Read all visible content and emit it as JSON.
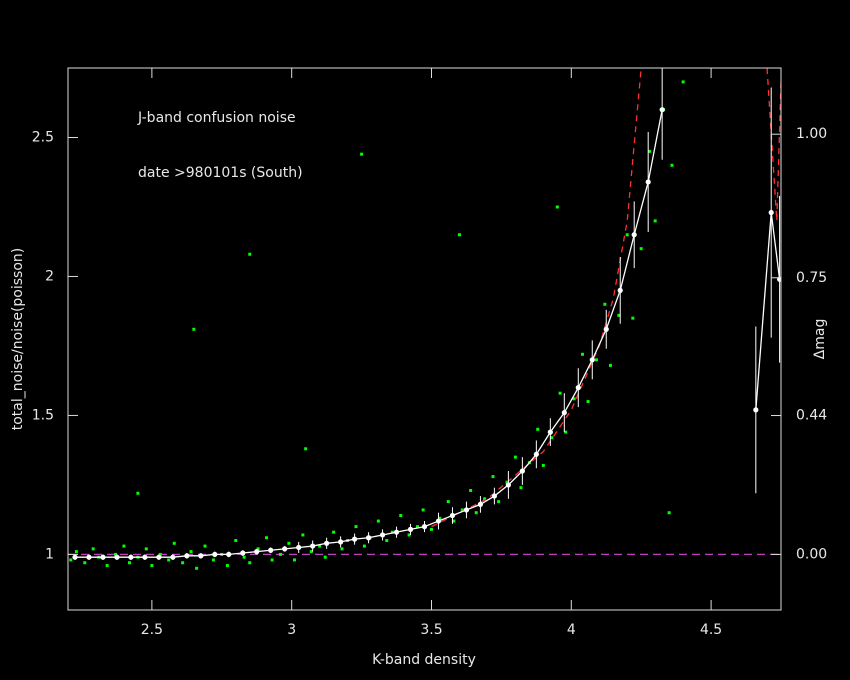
{
  "chart_data": {
    "type": "scatter",
    "annotations": [
      "J-band confusion noise",
      "date >980101s (South)"
    ],
    "xlabel": "K-band density",
    "ylabel": "total_noise/noise(poisson)",
    "y2label": "Δmag",
    "xlim": [
      2.2,
      4.75
    ],
    "ylim": [
      0.8,
      2.75
    ],
    "xticks": [
      2.5,
      3,
      3.5,
      4,
      4.5
    ],
    "yticks": [
      1,
      1.5,
      2,
      2.5
    ],
    "y2scale": "magnitude",
    "y2ticks": [
      {
        "value": 0,
        "label": "0.00"
      },
      0.44,
      0.75,
      {
        "value": 1,
        "label": "1.00"
      }
    ],
    "hline": {
      "value": 1,
      "color": "#c040c0"
    },
    "points": {
      "color": "#00ff00",
      "x": [
        2.21,
        2.23,
        2.26,
        2.29,
        2.31,
        2.34,
        2.37,
        2.4,
        2.42,
        2.45,
        2.48,
        2.5,
        2.53,
        2.56,
        2.58,
        2.61,
        2.64,
        2.66,
        2.69,
        2.72,
        2.75,
        2.77,
        2.8,
        2.83,
        2.85,
        2.88,
        2.91,
        2.93,
        2.96,
        2.99,
        3.01,
        3.04,
        3.07,
        3.1,
        3.12,
        3.15,
        3.18,
        3.2,
        3.23,
        3.26,
        3.28,
        3.31,
        3.34,
        3.36,
        3.39,
        3.42,
        3.45,
        3.47,
        3.5,
        3.53,
        3.56,
        3.58,
        3.61,
        3.64,
        3.66,
        3.69,
        3.72,
        3.74,
        3.77,
        3.8,
        3.82,
        3.85,
        3.88,
        3.9,
        3.93,
        3.96,
        3.98,
        4.01,
        4.04,
        4.06,
        4.09,
        4.12,
        4.14,
        4.17,
        4.2,
        4.22,
        4.25,
        4.28,
        4.3,
        4.33,
        4.36,
        4.4,
        2.45,
        2.85,
        3.05,
        3.25,
        2.65,
        3.6,
        3.95,
        4.35
      ],
      "y": [
        0.98,
        1.01,
        0.97,
        1.02,
        0.99,
        0.96,
        1.0,
        1.03,
        0.97,
        0.99,
        1.02,
        0.96,
        1.0,
        0.98,
        1.04,
        0.97,
        1.01,
        0.95,
        1.03,
        0.98,
        1.0,
        0.96,
        1.05,
        0.99,
        0.97,
        1.02,
        1.06,
        0.98,
        1.0,
        1.04,
        0.98,
        1.07,
        1.01,
        1.03,
        0.99,
        1.08,
        1.02,
        1.05,
        1.1,
        1.03,
        1.06,
        1.12,
        1.05,
        1.08,
        1.14,
        1.07,
        1.1,
        1.16,
        1.09,
        1.13,
        1.19,
        1.12,
        1.16,
        1.23,
        1.15,
        1.2,
        1.28,
        1.19,
        1.26,
        1.35,
        1.24,
        1.33,
        1.45,
        1.32,
        1.42,
        1.58,
        1.44,
        1.56,
        1.72,
        1.55,
        1.7,
        1.9,
        1.68,
        1.86,
        2.15,
        1.85,
        2.1,
        2.45,
        2.2,
        2.6,
        2.4,
        2.7,
        1.22,
        2.08,
        1.38,
        2.44,
        1.81,
        2.15,
        2.25,
        1.15
      ]
    },
    "mean": {
      "color": "#ffffff",
      "x": [
        2.225,
        2.275,
        2.325,
        2.375,
        2.425,
        2.475,
        2.525,
        2.575,
        2.625,
        2.675,
        2.725,
        2.775,
        2.825,
        2.875,
        2.925,
        2.975,
        3.025,
        3.075,
        3.125,
        3.175,
        3.225,
        3.275,
        3.325,
        3.375,
        3.425,
        3.475,
        3.525,
        3.575,
        3.625,
        3.675,
        3.725,
        3.775,
        3.825,
        3.875,
        3.925,
        3.975,
        4.025,
        4.075,
        4.125,
        4.175,
        4.225,
        4.275,
        4.325,
        4.5,
        4.66,
        4.715,
        4.745
      ],
      "values": [
        0.99,
        0.99,
        0.99,
        0.99,
        0.99,
        0.99,
        0.99,
        0.99,
        0.995,
        0.995,
        1.0,
        1.0,
        1.005,
        1.01,
        1.015,
        1.02,
        1.025,
        1.03,
        1.04,
        1.045,
        1.055,
        1.06,
        1.07,
        1.08,
        1.09,
        1.1,
        1.12,
        1.14,
        1.16,
        1.18,
        1.21,
        1.25,
        1.3,
        1.36,
        1.44,
        1.51,
        1.6,
        1.7,
        1.81,
        1.95,
        2.15,
        2.34,
        2.6,
        null,
        1.52,
        2.23,
        1.99
      ],
      "errors": [
        0.01,
        0.01,
        0.01,
        0.01,
        0.01,
        0.01,
        0.01,
        0.01,
        0.01,
        0.01,
        0.01,
        0.01,
        0.01,
        0.01,
        0.01,
        0.01,
        0.02,
        0.02,
        0.02,
        0.02,
        0.02,
        0.02,
        0.02,
        0.02,
        0.02,
        0.02,
        0.03,
        0.03,
        0.03,
        0.03,
        0.03,
        0.05,
        0.05,
        0.05,
        0.05,
        0.07,
        0.07,
        0.07,
        0.07,
        0.12,
        0.12,
        0.18,
        0.18,
        null,
        0.3,
        0.45,
        0.3
      ]
    },
    "model": {
      "color": "#ff3030",
      "x": [
        3.5,
        3.7,
        3.9,
        4.0,
        4.1,
        4.15,
        4.2,
        4.25,
        4.5,
        4.7,
        4.735,
        4.75
      ],
      "values": [
        1.1,
        1.2,
        1.37,
        1.52,
        1.75,
        1.92,
        2.2,
        2.75,
        null,
        2.75,
        2.2,
        2.7
      ]
    }
  }
}
